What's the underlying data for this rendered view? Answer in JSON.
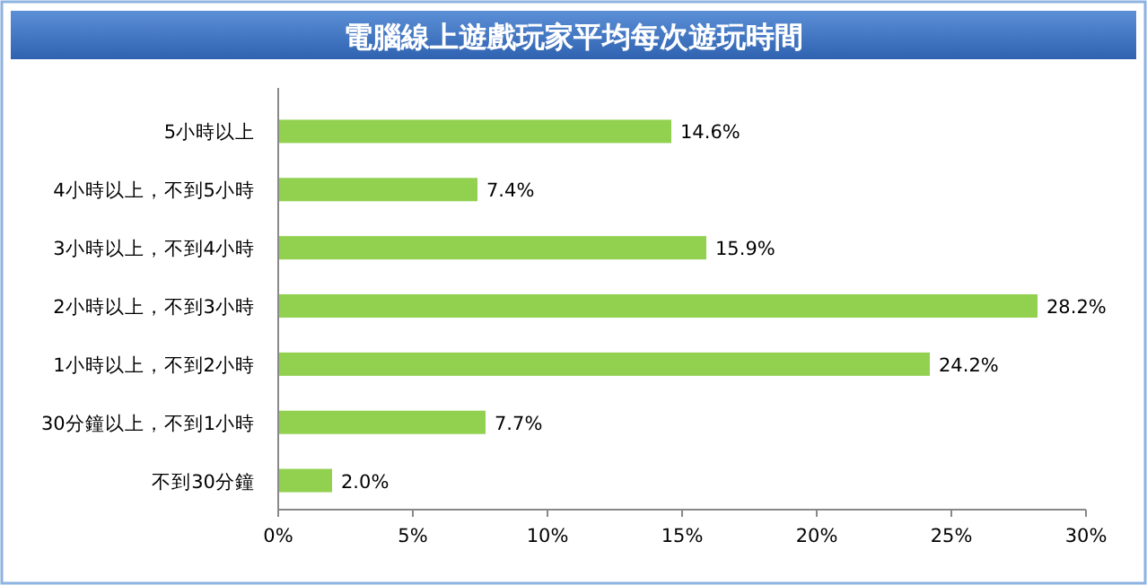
{
  "chart_data": {
    "type": "bar",
    "orientation": "horizontal",
    "title": "電腦線上遊戲玩家平均每次遊玩時間",
    "categories": [
      "5小時以上",
      "4小時以上，不到5小時",
      "3小時以上，不到4小時",
      "2小時以上，不到3小時",
      "1小時以上，不到2小時",
      "30分鐘以上，不到1小時",
      "不到30分鐘"
    ],
    "values": [
      14.6,
      7.4,
      15.9,
      28.2,
      24.2,
      7.7,
      2.0
    ],
    "value_labels": [
      "14.6%",
      "7.4%",
      "15.9%",
      "28.2%",
      "24.2%",
      "7.7%",
      "2.0%"
    ],
    "color": "#92d050",
    "xlim": [
      0,
      30
    ],
    "xticks": [
      {
        "value": 0,
        "label": "0%"
      },
      {
        "value": 5,
        "label": "5%"
      },
      {
        "value": 10,
        "label": "10%"
      },
      {
        "value": 15,
        "label": "15%"
      },
      {
        "value": 20,
        "label": "20%"
      },
      {
        "value": 25,
        "label": "25%"
      },
      {
        "value": 30,
        "label": "30%"
      }
    ]
  }
}
